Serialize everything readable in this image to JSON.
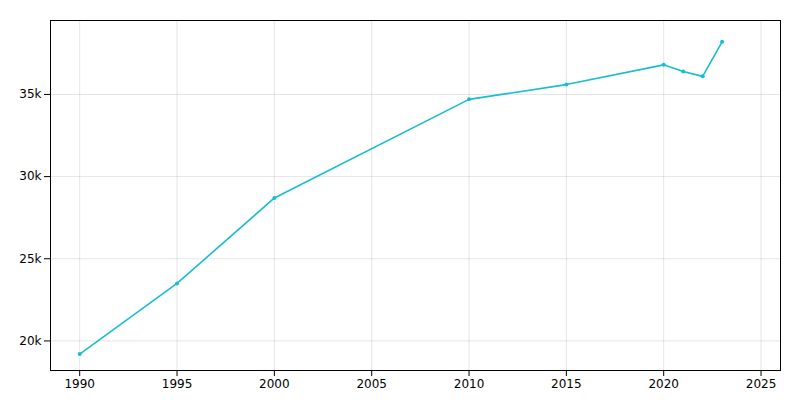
{
  "chart_data": {
    "type": "line",
    "x": [
      1990,
      1995,
      2000,
      2010,
      2015,
      2020,
      2021,
      2022,
      2023
    ],
    "values": [
      19200,
      23500,
      28700,
      34700,
      35600,
      36800,
      36400,
      36100,
      38200
    ],
    "color": "#17becf",
    "marker": "circle",
    "xlim": [
      1988.5,
      2026
    ],
    "ylim": [
      18200,
      39500
    ],
    "xticks": [
      1990,
      1995,
      2000,
      2005,
      2010,
      2015,
      2020,
      2025
    ],
    "yticks": [
      {
        "value": 20000,
        "label": "20k"
      },
      {
        "value": 25000,
        "label": "25k"
      },
      {
        "value": 30000,
        "label": "30k"
      },
      {
        "value": 35000,
        "label": "35k"
      }
    ],
    "grid": true
  }
}
